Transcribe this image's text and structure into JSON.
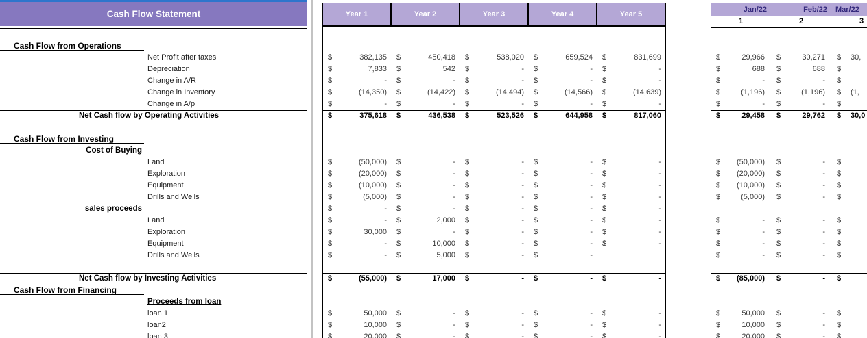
{
  "title": "Cash Flow Statement",
  "currency": "$",
  "colors": {
    "title_bar_purple": "#8678bf",
    "header_light_purple": "#b4a7d6",
    "month_label_text": "#352a7d",
    "top_accent_blue": "#2e75cc"
  },
  "year_columns": [
    "Year 1",
    "Year 2",
    "Year 3",
    "Year 4",
    "Year 5"
  ],
  "month_columns": [
    {
      "label": "Jan/22",
      "num": "1"
    },
    {
      "label": "Feb/22",
      "num": "2"
    },
    {
      "label": "Mar/22",
      "num": "3"
    }
  ],
  "rows": [
    {
      "type": "blank"
    },
    {
      "type": "section",
      "label": "Cash Flow from Operations"
    },
    {
      "type": "item",
      "label": "Net Profit after taxes",
      "y": [
        "382,135",
        "450,418",
        "538,020",
        "659,524",
        "831,699"
      ],
      "m": [
        "29,966",
        "30,271",
        "30,"
      ]
    },
    {
      "type": "item",
      "label": "Depreciation",
      "y": [
        "7,833",
        "542",
        "-",
        "-",
        "-"
      ],
      "m": [
        "688",
        "688",
        ""
      ]
    },
    {
      "type": "item",
      "label": "Change in A/R",
      "y": [
        "-",
        "-",
        "-",
        "-",
        "-"
      ],
      "m": [
        "-",
        "-",
        ""
      ]
    },
    {
      "type": "item",
      "label": "Change in Inventory",
      "y": [
        "(14,350)",
        "(14,422)",
        "(14,494)",
        "(14,566)",
        "(14,639)"
      ],
      "m": [
        "(1,196)",
        "(1,196)",
        "(1,"
      ]
    },
    {
      "type": "item",
      "label": "Change in A/p",
      "y": [
        "-",
        "-",
        "-",
        "-",
        "-"
      ],
      "m": [
        "-",
        "-",
        ""
      ]
    },
    {
      "type": "total",
      "label": "Net Cash flow by Operating Activities",
      "topline": true,
      "y": [
        "375,618",
        "436,538",
        "523,526",
        "644,958",
        "817,060"
      ],
      "m": [
        "29,458",
        "29,762",
        "30,0"
      ]
    },
    {
      "type": "blank"
    },
    {
      "type": "section",
      "label": "Cash Flow from Investing"
    },
    {
      "type": "subheader",
      "label": "Cost of Buying"
    },
    {
      "type": "item",
      "label": "Land",
      "y": [
        "(50,000)",
        "-",
        "-",
        "-",
        "-"
      ],
      "m": [
        "(50,000)",
        "-",
        ""
      ]
    },
    {
      "type": "item",
      "label": "Exploration",
      "y": [
        "(20,000)",
        "-",
        "-",
        "-",
        "-"
      ],
      "m": [
        "(20,000)",
        "-",
        ""
      ]
    },
    {
      "type": "item",
      "label": "Equipment",
      "y": [
        "(10,000)",
        "-",
        "-",
        "-",
        "-"
      ],
      "m": [
        "(10,000)",
        "-",
        ""
      ]
    },
    {
      "type": "item",
      "label": "Drills and Wells",
      "y": [
        "(5,000)",
        "-",
        "-",
        "-",
        "-"
      ],
      "m": [
        "(5,000)",
        "-",
        ""
      ]
    },
    {
      "type": "subheader",
      "label": "sales proceeds",
      "y": [
        "-",
        "-",
        "-",
        "-",
        "-"
      ],
      "m": [
        null,
        null,
        null
      ]
    },
    {
      "type": "item",
      "label": "Land",
      "y": [
        "-",
        "2,000",
        "-",
        "-",
        "-"
      ],
      "m": [
        "-",
        "-",
        ""
      ]
    },
    {
      "type": "item",
      "label": "Exploration",
      "y": [
        "30,000",
        "-",
        "-",
        "-",
        "-"
      ],
      "m": [
        "-",
        "-",
        ""
      ]
    },
    {
      "type": "item",
      "label": "Equipment",
      "y": [
        "-",
        "10,000",
        "-",
        "-",
        "-"
      ],
      "m": [
        "-",
        "-",
        ""
      ]
    },
    {
      "type": "item",
      "label": "Drills and Wells",
      "y": [
        "-",
        "5,000",
        "-",
        "-",
        null
      ],
      "m": [
        "-",
        "-",
        ""
      ]
    },
    {
      "type": "blank"
    },
    {
      "type": "total",
      "label": "Net Cash flow by Investing Activities",
      "topline": true,
      "y": [
        "(55,000)",
        "17,000",
        "-",
        "-",
        "-"
      ],
      "m": [
        "(85,000)",
        "-",
        ""
      ]
    },
    {
      "type": "section",
      "label": "Cash Flow from Financing"
    },
    {
      "type": "item_bold_underline",
      "label": "Proceeds from loan"
    },
    {
      "type": "item",
      "label": "loan 1",
      "y": [
        "50,000",
        "-",
        "-",
        "-",
        "-"
      ],
      "m": [
        "50,000",
        "-",
        ""
      ]
    },
    {
      "type": "item",
      "label": "loan2",
      "y": [
        "10,000",
        "-",
        "-",
        "-",
        "-"
      ],
      "m": [
        "10,000",
        "-",
        ""
      ]
    },
    {
      "type": "item",
      "label": "loan 3",
      "y": [
        "20,000",
        "-",
        "-",
        "-",
        "-"
      ],
      "m": [
        "20,000",
        "-",
        ""
      ]
    }
  ]
}
